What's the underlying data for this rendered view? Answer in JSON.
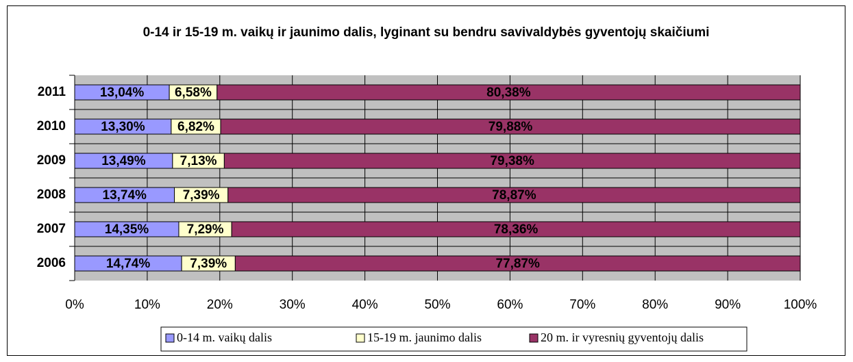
{
  "chart_data": {
    "type": "stacked-bar-horizontal",
    "title": "0-14 ir 15-19 m. vaikų ir jaunimo dalis, lyginant su bendru savivaldybės gyventojų skaičiumi",
    "categories": [
      "2011",
      "2010",
      "2009",
      "2008",
      "2007",
      "2006"
    ],
    "series": [
      {
        "name": "0-14 m. vaikų dalis",
        "color": "#9999ff",
        "values": [
          13.04,
          13.3,
          13.49,
          13.74,
          14.35,
          14.74
        ],
        "value_labels": [
          "13,04%",
          "13,30%",
          "13,49%",
          "13,74%",
          "14,35%",
          "14,74%"
        ]
      },
      {
        "name": "15-19 m. jaunimo dalis",
        "color": "#ffffcc",
        "values": [
          6.58,
          6.82,
          7.13,
          7.39,
          7.29,
          7.39
        ],
        "value_labels": [
          "6,58%",
          "6,82%",
          "7,13%",
          "7,39%",
          "7,29%",
          "7,39%"
        ]
      },
      {
        "name": "20 m. ir vyresnių gyventojų dalis",
        "color": "#993366",
        "values": [
          80.38,
          79.88,
          79.38,
          78.87,
          78.36,
          77.87
        ],
        "value_labels": [
          "80,38%",
          "79,88%",
          "79,38%",
          "78,87%",
          "78,36%",
          "77,87%"
        ]
      }
    ],
    "xlim": [
      0,
      100
    ],
    "xticks": [
      {
        "value": 0,
        "label": "0%"
      },
      {
        "value": 10,
        "label": "10%"
      },
      {
        "value": 20,
        "label": "20%"
      },
      {
        "value": 30,
        "label": "30%"
      },
      {
        "value": 40,
        "label": "40%"
      },
      {
        "value": 50,
        "label": "50%"
      },
      {
        "value": 60,
        "label": "60%"
      },
      {
        "value": 70,
        "label": "70%"
      },
      {
        "value": 80,
        "label": "80%"
      },
      {
        "value": 90,
        "label": "90%"
      },
      {
        "value": 100,
        "label": "100%"
      }
    ],
    "grid": true,
    "legend": "bottom"
  }
}
